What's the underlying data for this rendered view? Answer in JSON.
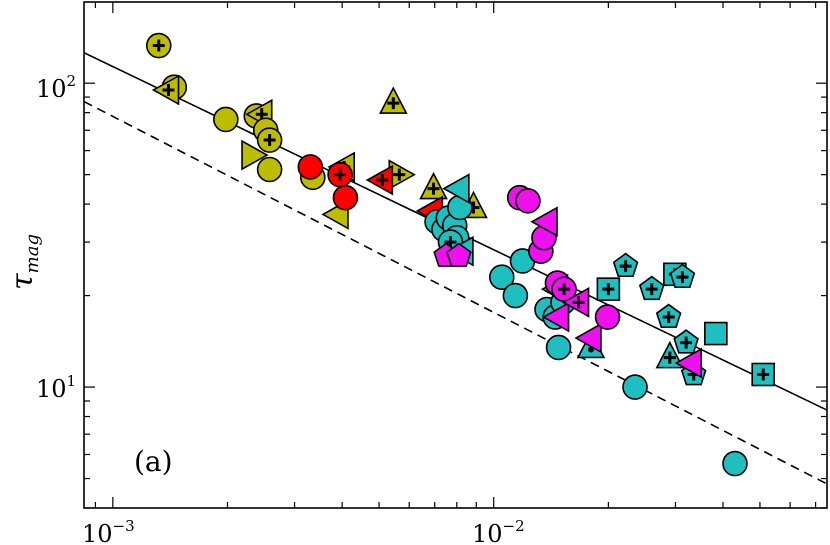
{
  "chart_data": {
    "type": "scatter",
    "title": "",
    "xlabel": "",
    "ylabel": "τ_mag",
    "ylabel_main": "τ",
    "ylabel_sub": "mag",
    "x_scale": "log",
    "y_scale": "log",
    "xlim": [
      0.00084,
      0.075
    ],
    "ylim": [
      4.0,
      185
    ],
    "x_ticks": [
      {
        "value": 0.001,
        "base": "10",
        "exp": "−3"
      },
      {
        "value": 0.01,
        "base": "10",
        "exp": "−2"
      }
    ],
    "y_ticks": [
      {
        "value": 10,
        "base": "10",
        "exp": "1"
      },
      {
        "value": 100,
        "base": "10",
        "exp": "2"
      }
    ],
    "annotation": "(a)",
    "colors": {
      "olive": "#BDBD00",
      "red": "#FF0000",
      "cyan": "#1FBFBF",
      "magenta": "#EE11EE"
    },
    "lines": [
      {
        "name": "fit",
        "style": "solid",
        "points": [
          [
            0.00084,
            126
          ],
          [
            0.075,
            8.4
          ]
        ]
      },
      {
        "name": "lower-bound",
        "style": "dashed",
        "points": [
          [
            0.00084,
            87
          ],
          [
            0.075,
            4.8
          ]
        ]
      }
    ],
    "series": [
      {
        "name": "olive",
        "color": "#BDBD00",
        "points": [
          {
            "x": 0.00132,
            "y": 133,
            "m": "circle",
            "plus": true
          },
          {
            "x": 0.00145,
            "y": 97,
            "m": "circle"
          },
          {
            "x": 0.0014,
            "y": 95,
            "m": "tri-left",
            "plus": true
          },
          {
            "x": 0.00198,
            "y": 76,
            "m": "circle"
          },
          {
            "x": 0.00238,
            "y": 78,
            "m": "circle"
          },
          {
            "x": 0.00246,
            "y": 79,
            "m": "tri-left",
            "plus": true
          },
          {
            "x": 0.00252,
            "y": 70,
            "m": "circle"
          },
          {
            "x": 0.00258,
            "y": 65,
            "m": "circle",
            "plus": true
          },
          {
            "x": 0.00232,
            "y": 58,
            "m": "tri-right"
          },
          {
            "x": 0.00258,
            "y": 52,
            "m": "circle"
          },
          {
            "x": 0.00335,
            "y": 49,
            "m": "circle"
          },
          {
            "x": 0.00405,
            "y": 53,
            "m": "tri-left",
            "plus": true
          },
          {
            "x": 0.0039,
            "y": 37,
            "m": "tri-left"
          },
          {
            "x": 0.00565,
            "y": 50,
            "m": "tri-right",
            "plus": true
          },
          {
            "x": 0.00545,
            "y": 86,
            "m": "tri-up",
            "plus": true
          },
          {
            "x": 0.00695,
            "y": 45,
            "m": "tri-up",
            "plus": true
          },
          {
            "x": 0.00885,
            "y": 39,
            "m": "tri-up",
            "plus": true
          }
        ]
      },
      {
        "name": "red",
        "color": "#FF0000",
        "points": [
          {
            "x": 0.0033,
            "y": 53,
            "m": "circle"
          },
          {
            "x": 0.00395,
            "y": 50,
            "m": "circle",
            "plus": true
          },
          {
            "x": 0.00408,
            "y": 42,
            "m": "circle"
          },
          {
            "x": 0.0051,
            "y": 48,
            "m": "tri-left",
            "plus": true
          },
          {
            "x": 0.0069,
            "y": 38,
            "m": "tri-left"
          }
        ]
      },
      {
        "name": "cyan",
        "color": "#1FBFBF",
        "points": [
          {
            "x": 0.0071,
            "y": 35,
            "m": "circle"
          },
          {
            "x": 0.0074,
            "y": 33,
            "m": "circle"
          },
          {
            "x": 0.0076,
            "y": 36,
            "m": "circle"
          },
          {
            "x": 0.0079,
            "y": 34,
            "m": "circle"
          },
          {
            "x": 0.00815,
            "y": 39,
            "m": "circle"
          },
          {
            "x": 0.008,
            "y": 31,
            "m": "circle"
          },
          {
            "x": 0.0077,
            "y": 30,
            "m": "circle",
            "plus": true
          },
          {
            "x": 0.0083,
            "y": 28,
            "m": "tri-left"
          },
          {
            "x": 0.0081,
            "y": 45,
            "m": "tri-left"
          },
          {
            "x": 0.0105,
            "y": 23,
            "m": "circle"
          },
          {
            "x": 0.0114,
            "y": 20,
            "m": "circle"
          },
          {
            "x": 0.0119,
            "y": 26,
            "m": "circle"
          },
          {
            "x": 0.0138,
            "y": 18,
            "m": "circle"
          },
          {
            "x": 0.0145,
            "y": 17,
            "m": "circle"
          },
          {
            "x": 0.0147,
            "y": 21,
            "m": "tri-left"
          },
          {
            "x": 0.0152,
            "y": 19,
            "m": "circle"
          },
          {
            "x": 0.0148,
            "y": 13.5,
            "m": "circle"
          },
          {
            "x": 0.018,
            "y": 13.5,
            "m": "tri-up",
            "dot": true
          },
          {
            "x": 0.02,
            "y": 21,
            "m": "square",
            "plus": true
          },
          {
            "x": 0.0235,
            "y": 10,
            "m": "circle"
          },
          {
            "x": 0.0222,
            "y": 25,
            "m": "pentagon",
            "plus": true
          },
          {
            "x": 0.026,
            "y": 21,
            "m": "pentagon",
            "plus": true
          },
          {
            "x": 0.0288,
            "y": 17,
            "m": "pentagon",
            "plus": true
          },
          {
            "x": 0.0299,
            "y": 23.5,
            "m": "square",
            "plus": true
          },
          {
            "x": 0.0313,
            "y": 23,
            "m": "pentagon",
            "plus": true
          },
          {
            "x": 0.029,
            "y": 12.5,
            "m": "tri-up",
            "plus": true
          },
          {
            "x": 0.032,
            "y": 14,
            "m": "pentagon",
            "plus": true
          },
          {
            "x": 0.0335,
            "y": 11,
            "m": "pentagon",
            "plus": true
          },
          {
            "x": 0.0383,
            "y": 15,
            "m": "square"
          },
          {
            "x": 0.043,
            "y": 5.6,
            "m": "circle"
          },
          {
            "x": 0.051,
            "y": 11,
            "m": "square",
            "plus": true
          }
        ]
      },
      {
        "name": "magenta",
        "color": "#EE11EE",
        "points": [
          {
            "x": 0.0075,
            "y": 27,
            "m": "pentagon"
          },
          {
            "x": 0.0081,
            "y": 27,
            "m": "pentagon"
          },
          {
            "x": 0.0117,
            "y": 42,
            "m": "circle"
          },
          {
            "x": 0.0123,
            "y": 41,
            "m": "circle"
          },
          {
            "x": 0.0133,
            "y": 28,
            "m": "circle"
          },
          {
            "x": 0.01355,
            "y": 31,
            "m": "circle"
          },
          {
            "x": 0.0138,
            "y": 35,
            "m": "tri-left"
          },
          {
            "x": 0.0147,
            "y": 22,
            "m": "circle"
          },
          {
            "x": 0.0153,
            "y": 21,
            "m": "circle",
            "plus": true
          },
          {
            "x": 0.0148,
            "y": 17,
            "m": "tri-left"
          },
          {
            "x": 0.0167,
            "y": 19,
            "m": "tri-left",
            "plus": true
          },
          {
            "x": 0.018,
            "y": 14.5,
            "m": "tri-left"
          },
          {
            "x": 0.0199,
            "y": 17,
            "m": "circle"
          },
          {
            "x": 0.033,
            "y": 12,
            "m": "tri-left"
          }
        ]
      }
    ]
  }
}
